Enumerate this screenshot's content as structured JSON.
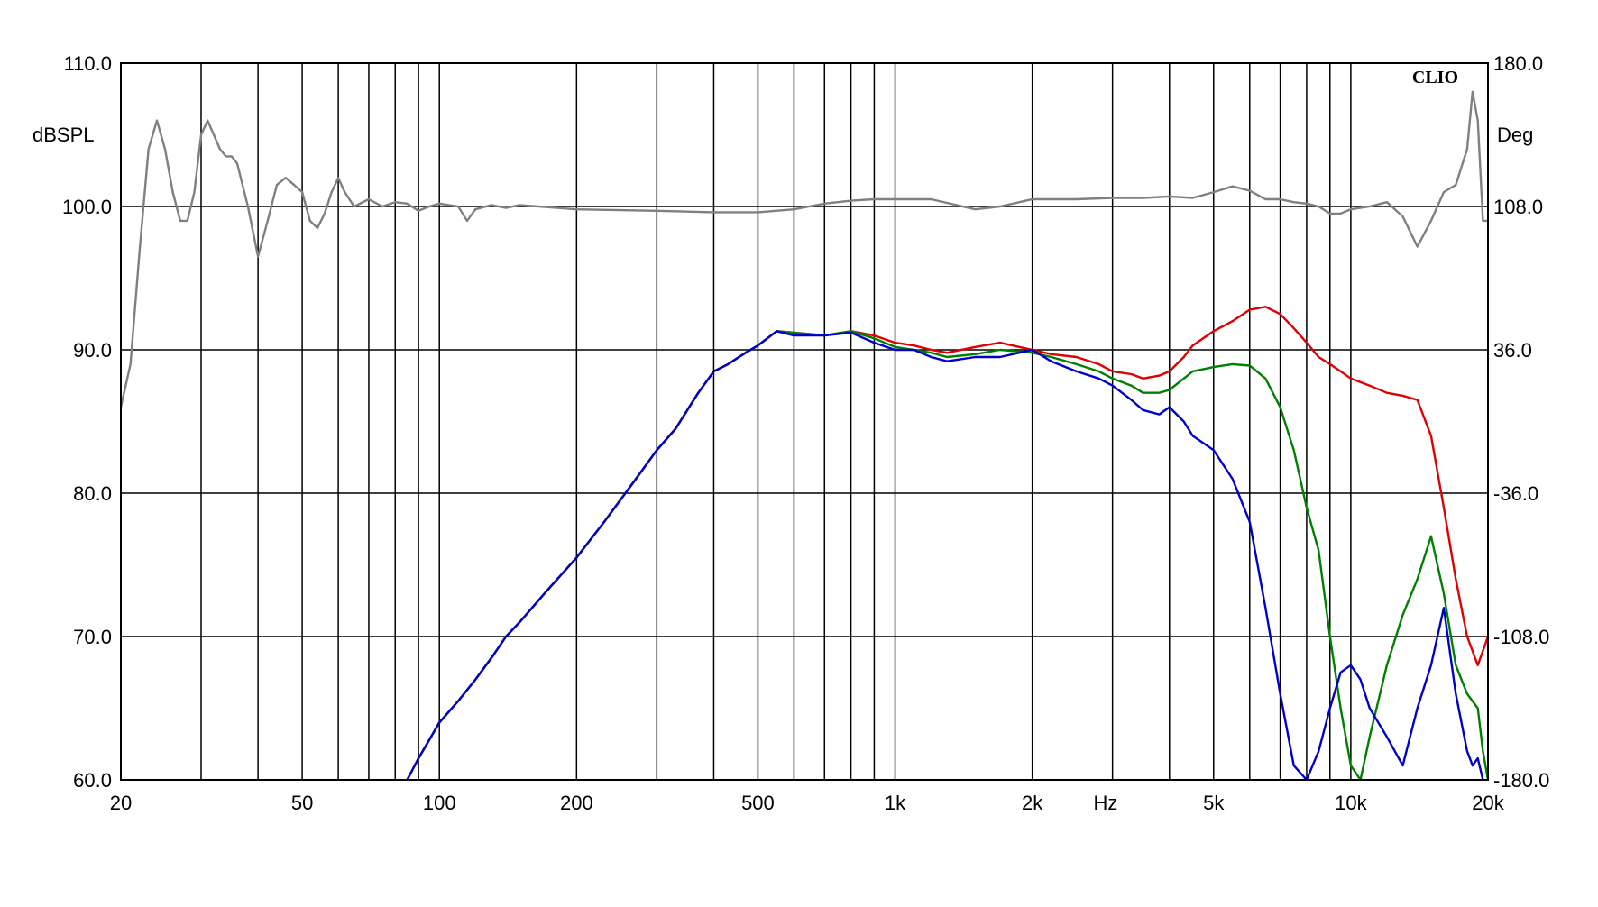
{
  "chart_data": {
    "type": "line",
    "brand": "CLIO",
    "x_unit_label": "Hz",
    "y_left_label": "dBSPL",
    "y_right_label": "Deg",
    "x_scale": "log",
    "xlim": [
      20,
      20000
    ],
    "ylim_left": [
      60,
      110
    ],
    "ylim_right": [
      -180,
      180
    ],
    "grid": true,
    "x_tick_labels": [
      {
        "value": 20,
        "label": "20"
      },
      {
        "value": 50,
        "label": "50"
      },
      {
        "value": 100,
        "label": "100"
      },
      {
        "value": 200,
        "label": "200"
      },
      {
        "value": 500,
        "label": "500"
      },
      {
        "value": 1000,
        "label": "1k"
      },
      {
        "value": 2000,
        "label": "2k"
      },
      {
        "value": 5000,
        "label": "5k"
      },
      {
        "value": 10000,
        "label": "10k"
      },
      {
        "value": 20000,
        "label": "20k"
      }
    ],
    "x_gridlines": [
      30,
      40,
      50,
      60,
      70,
      80,
      90,
      100,
      200,
      300,
      400,
      500,
      600,
      700,
      800,
      900,
      1000,
      2000,
      3000,
      4000,
      5000,
      6000,
      7000,
      8000,
      9000,
      10000,
      20000
    ],
    "y_left_ticks": [
      {
        "value": 60,
        "label": "60.0"
      },
      {
        "value": 70,
        "label": "70.0"
      },
      {
        "value": 80,
        "label": "80.0"
      },
      {
        "value": 90,
        "label": "90.0"
      },
      {
        "value": 100,
        "label": "100.0"
      },
      {
        "value": 110,
        "label": "110.0"
      }
    ],
    "y_right_ticks": [
      {
        "value": -180,
        "label": "-180.0"
      },
      {
        "value": -108,
        "label": "-108.0"
      },
      {
        "value": -36,
        "label": "-36.0"
      },
      {
        "value": 36,
        "label": "36.0"
      },
      {
        "value": 108,
        "label": "108.0"
      },
      {
        "value": 180,
        "label": "180.0"
      }
    ],
    "series": [
      {
        "color": "#808080",
        "axis": "left",
        "x": [
          20,
          21,
          22,
          23,
          24,
          25,
          26,
          27,
          28,
          29,
          30,
          31,
          32,
          33,
          34,
          35,
          36,
          38,
          40,
          42,
          44,
          46,
          48,
          50,
          52,
          54,
          56,
          58,
          60,
          62,
          65,
          70,
          75,
          80,
          85,
          90,
          95,
          100,
          110,
          115,
          120,
          130,
          140,
          150,
          200,
          300,
          400,
          500,
          600,
          700,
          800,
          900,
          1000,
          1200,
          1500,
          1700,
          2000,
          2500,
          3000,
          3500,
          4000,
          4500,
          5000,
          5500,
          6000,
          6500,
          7000,
          7500,
          8000,
          8500,
          9000,
          9500,
          10000,
          11000,
          12000,
          13000,
          14000,
          15000,
          16000,
          17000,
          18000,
          18500,
          19000,
          19500,
          20000
        ],
        "y": [
          86,
          89,
          97,
          104,
          106,
          104,
          101,
          99,
          99,
          101,
          105,
          106,
          105,
          104,
          103.5,
          103.5,
          103,
          100,
          96.5,
          99,
          101.5,
          102,
          101.5,
          101,
          99,
          98.5,
          99.5,
          101,
          102,
          101,
          100,
          100.5,
          100,
          100.3,
          100.2,
          99.7,
          100,
          100.2,
          100,
          99,
          99.8,
          100.1,
          99.9,
          100.1,
          99.8,
          99.7,
          99.6,
          99.6,
          99.8,
          100.2,
          100.4,
          100.5,
          100.5,
          100.5,
          99.8,
          100,
          100.5,
          100.5,
          100.6,
          100.6,
          100.7,
          100.6,
          101,
          101.4,
          101.1,
          100.5,
          100.5,
          100.3,
          100.2,
          100,
          99.5,
          99.5,
          99.8,
          100,
          100.3,
          99.3,
          97.2,
          99,
          101,
          101.5,
          104,
          108,
          106,
          99,
          99
        ]
      },
      {
        "color": "#e00000",
        "axis": "left",
        "x": [
          85,
          90,
          100,
          110,
          120,
          130,
          140,
          150,
          170,
          200,
          230,
          270,
          300,
          330,
          370,
          400,
          430,
          470,
          500,
          550,
          600,
          700,
          800,
          900,
          1000,
          1100,
          1200,
          1300,
          1500,
          1700,
          2000,
          2200,
          2500,
          2800,
          3000,
          3300,
          3500,
          3800,
          4000,
          4300,
          4500,
          5000,
          5500,
          6000,
          6500,
          7000,
          7500,
          8000,
          8500,
          9000,
          9500,
          10000,
          11000,
          12000,
          13000,
          14000,
          15000,
          16000,
          17000,
          18000,
          19000,
          19500,
          20000
        ],
        "y": [
          60,
          61.5,
          64,
          65.5,
          67,
          68.5,
          70,
          71,
          73,
          75.5,
          78,
          81,
          83,
          84.5,
          87,
          88.5,
          89,
          89.8,
          90.3,
          91.3,
          91.2,
          91,
          91.3,
          91,
          90.5,
          90.3,
          90,
          89.8,
          90.2,
          90.5,
          90,
          89.7,
          89.5,
          89,
          88.5,
          88.3,
          88,
          88.2,
          88.5,
          89.5,
          90.3,
          91.3,
          92,
          92.8,
          93,
          92.5,
          91.5,
          90.5,
          89.5,
          89,
          88.5,
          88,
          87.5,
          87,
          86.8,
          86.5,
          84,
          79,
          74,
          70,
          68,
          69,
          70
        ]
      },
      {
        "color": "#008000",
        "axis": "left",
        "x": [
          85,
          90,
          100,
          110,
          120,
          130,
          140,
          150,
          170,
          200,
          230,
          270,
          300,
          330,
          370,
          400,
          430,
          470,
          500,
          550,
          600,
          700,
          800,
          900,
          1000,
          1100,
          1200,
          1300,
          1500,
          1700,
          2000,
          2200,
          2500,
          2800,
          3000,
          3300,
          3500,
          3800,
          4000,
          4300,
          4500,
          5000,
          5500,
          6000,
          6500,
          7000,
          7500,
          8000,
          8500,
          9000,
          9500,
          10000,
          10500,
          11000,
          12000,
          13000,
          14000,
          15000,
          16000,
          17000,
          18000,
          19000,
          19500,
          20000
        ],
        "y": [
          60,
          61.5,
          64,
          65.5,
          67,
          68.5,
          70,
          71,
          73,
          75.5,
          78,
          81,
          83,
          84.5,
          87,
          88.5,
          89,
          89.8,
          90.3,
          91.3,
          91.2,
          91,
          91.3,
          90.8,
          90.2,
          90,
          89.8,
          89.5,
          89.7,
          90,
          89.8,
          89.5,
          89,
          88.5,
          88,
          87.5,
          87,
          87,
          87.2,
          88,
          88.5,
          88.8,
          89,
          88.9,
          88,
          86,
          83,
          79,
          76,
          70,
          65,
          61,
          60,
          63,
          68,
          71.5,
          74,
          77,
          73,
          68,
          66,
          65,
          62,
          60
        ]
      },
      {
        "color": "#0000cc",
        "axis": "left",
        "x": [
          85,
          90,
          100,
          110,
          120,
          130,
          140,
          150,
          170,
          200,
          230,
          270,
          300,
          330,
          370,
          400,
          430,
          470,
          500,
          550,
          600,
          700,
          800,
          900,
          1000,
          1100,
          1200,
          1300,
          1500,
          1700,
          2000,
          2200,
          2500,
          2800,
          3000,
          3300,
          3500,
          3800,
          4000,
          4300,
          4500,
          5000,
          5500,
          6000,
          6500,
          7000,
          7500,
          8000,
          8500,
          9000,
          9500,
          10000,
          10500,
          11000,
          12000,
          13000,
          14000,
          15000,
          16000,
          17000,
          18000,
          18500,
          19000,
          19500
        ],
        "y": [
          60,
          61.5,
          64,
          65.5,
          67,
          68.5,
          70,
          71,
          73,
          75.5,
          78,
          81,
          83,
          84.5,
          87,
          88.5,
          89,
          89.8,
          90.3,
          91.3,
          91,
          91,
          91.2,
          90.5,
          90,
          90,
          89.5,
          89.2,
          89.5,
          89.5,
          90,
          89.2,
          88.5,
          88,
          87.5,
          86.5,
          85.8,
          85.5,
          86,
          85,
          84,
          83,
          81,
          78,
          72,
          66,
          61,
          60,
          62,
          65,
          67.5,
          68,
          67,
          65,
          63,
          61,
          65,
          68,
          72,
          66,
          62,
          61,
          61.5,
          60
        ]
      }
    ]
  }
}
